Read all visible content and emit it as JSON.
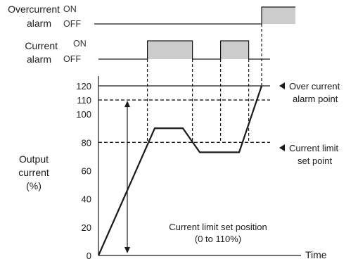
{
  "chart_data": {
    "type": "line",
    "xlabel": "Time",
    "ylabel_lines": [
      "Output",
      "current",
      "(%)"
    ],
    "ylim": [
      0,
      120
    ],
    "yticks": [
      0,
      20,
      40,
      60,
      80,
      100,
      110,
      120
    ],
    "current_limit_set_point": 80,
    "over_current_alarm_point": 120,
    "limit_setting_max": 110,
    "series": [
      {
        "x": [
          0,
          1.0,
          1.5,
          1.8,
          2.5,
          2.9
        ],
        "y": [
          0,
          90,
          90,
          73,
          73,
          120
        ]
      }
    ],
    "alarm_rows": [
      {
        "label_lines": [
          "Overcurrent",
          "alarm"
        ],
        "on_label": "ON",
        "off_label": "OFF",
        "on_intervals": [
          [
            2.9,
            3.5
          ]
        ]
      },
      {
        "label_lines": [
          "Current",
          "alarm"
        ],
        "on_label": "ON",
        "off_label": "OFF",
        "on_intervals": [
          [
            0.87,
            1.67
          ],
          [
            2.17,
            2.67
          ]
        ]
      }
    ],
    "annotations": {
      "over_current_alarm_point": [
        "Over current",
        "alarm point"
      ],
      "current_limit_set_point": [
        "Current limit",
        "set point"
      ],
      "current_limit_set_position": [
        "Current limit set position",
        "(0 to 110%)"
      ]
    },
    "colors": {
      "alarm_fill": "#cccccc",
      "line": "#1a1a1a"
    }
  }
}
